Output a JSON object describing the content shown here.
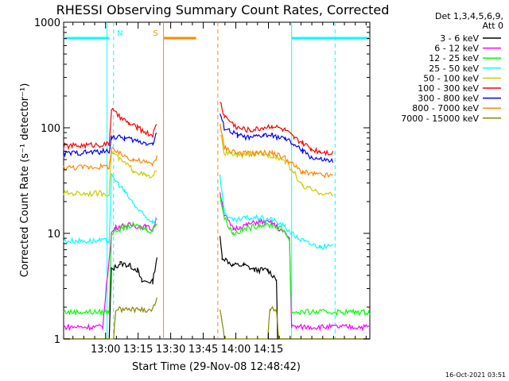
{
  "chart_data": {
    "type": "line",
    "title": "RHESSI Observing Summary Count Rates, Corrected",
    "xlabel": "Start Time (29-Nov-08 12:48:42)",
    "ylabel": "Corrected Count Rate (s⁻¹ detector⁻¹)",
    "y_scale": "log",
    "ylim": [
      1,
      1000
    ],
    "xlim": [
      -8,
      133
    ],
    "y_ticks": [
      1,
      10,
      100,
      1000
    ],
    "x_ticks": [
      {
        "label": "13:00",
        "min": 11.3
      },
      {
        "label": "13:15",
        "min": 26.3
      },
      {
        "label": "13:30",
        "min": 41.3
      },
      {
        "label": "13:45",
        "min": 56.3
      },
      {
        "label": "14:00",
        "min": 71.3
      },
      {
        "label": "14:15",
        "min": 86.3
      }
    ],
    "legend_header": [
      "Det 1,3,4,5,6,9,",
      "Att 0"
    ],
    "legend_position": "right",
    "grid": false,
    "series": [
      {
        "name": "3 - 6 keV",
        "color": "#000000",
        "data": [
          [
            -8,
            1
          ],
          [
            13,
            1
          ],
          [
            14,
            4.5
          ],
          [
            18,
            5.2
          ],
          [
            22,
            5
          ],
          [
            26,
            4.5
          ],
          [
            28,
            3.5
          ],
          [
            33,
            3.5
          ],
          [
            35,
            6
          ],
          [
            38,
            null
          ],
          [
            64,
            null
          ],
          [
            64,
            9
          ],
          [
            65,
            6
          ],
          [
            70,
            5
          ],
          [
            75,
            5
          ],
          [
            80,
            4.5
          ],
          [
            86,
            4.5
          ],
          [
            90,
            3.7
          ],
          [
            90.5,
            1
          ],
          [
            133,
            1
          ]
        ]
      },
      {
        "name": "6 - 12 keV",
        "color": "#ff00ff",
        "data": [
          [
            -8,
            1.3
          ],
          [
            10,
            1.3
          ],
          [
            14,
            10
          ],
          [
            16,
            11.5
          ],
          [
            22,
            12
          ],
          [
            30,
            11.5
          ],
          [
            33,
            11
          ],
          [
            35,
            14
          ],
          [
            38,
            null
          ],
          [
            64,
            null
          ],
          [
            64,
            25
          ],
          [
            66,
            15
          ],
          [
            70,
            11
          ],
          [
            76,
            12
          ],
          [
            82,
            13
          ],
          [
            88,
            12.5
          ],
          [
            94,
            10
          ],
          [
            96,
            9
          ],
          [
            97,
            1.3
          ],
          [
            133,
            1.3
          ]
        ]
      },
      {
        "name": "12 - 25 keV",
        "color": "#00ff00",
        "data": [
          [
            -8,
            1.8
          ],
          [
            13,
            1.8
          ],
          [
            14,
            10
          ],
          [
            18,
            11
          ],
          [
            24,
            12
          ],
          [
            30,
            11
          ],
          [
            33,
            10.5
          ],
          [
            35,
            13
          ],
          [
            38,
            null
          ],
          [
            64,
            null
          ],
          [
            64,
            23
          ],
          [
            66,
            14
          ],
          [
            70,
            10
          ],
          [
            76,
            11
          ],
          [
            82,
            12
          ],
          [
            88,
            12
          ],
          [
            94,
            10.5
          ],
          [
            96,
            8.5
          ],
          [
            97,
            1.8
          ],
          [
            133,
            1.8
          ]
        ]
      },
      {
        "name": "25 - 50 keV",
        "color": "#00ffff",
        "data": [
          [
            -8,
            8.5
          ],
          [
            13,
            8.5
          ],
          [
            14,
            35
          ],
          [
            17,
            30
          ],
          [
            20,
            25
          ],
          [
            25,
            18
          ],
          [
            30,
            14
          ],
          [
            33,
            13
          ],
          [
            35,
            14
          ],
          [
            38,
            null
          ],
          [
            64,
            null
          ],
          [
            64,
            35
          ],
          [
            66,
            16
          ],
          [
            70,
            13
          ],
          [
            76,
            14
          ],
          [
            82,
            14
          ],
          [
            88,
            13.5
          ],
          [
            94,
            11.5
          ],
          [
            97,
            10
          ],
          [
            100,
            9
          ],
          [
            105,
            8
          ],
          [
            110,
            7.5
          ],
          [
            116,
            7.5
          ]
        ]
      },
      {
        "name": "50 - 100 keV",
        "color": "#cccc00",
        "data": [
          [
            -8,
            24
          ],
          [
            13,
            24
          ],
          [
            14,
            60
          ],
          [
            18,
            50
          ],
          [
            24,
            40
          ],
          [
            30,
            35
          ],
          [
            33,
            34
          ],
          [
            35,
            40
          ],
          [
            38,
            null
          ],
          [
            64,
            null
          ],
          [
            64,
            90
          ],
          [
            66,
            58
          ],
          [
            72,
            55
          ],
          [
            78,
            57
          ],
          [
            84,
            56
          ],
          [
            90,
            54
          ],
          [
            94,
            48
          ],
          [
            98,
            38
          ],
          [
            102,
            28
          ],
          [
            108,
            25
          ],
          [
            116,
            23
          ]
        ]
      },
      {
        "name": "100 - 300 keV",
        "color": "#ff0000",
        "data": [
          [
            -8,
            67
          ],
          [
            13,
            70
          ],
          [
            14,
            150
          ],
          [
            17,
            130
          ],
          [
            22,
            110
          ],
          [
            26,
            100
          ],
          [
            30,
            90
          ],
          [
            33,
            85
          ],
          [
            35,
            110
          ],
          [
            38,
            null
          ],
          [
            64,
            null
          ],
          [
            64,
            180
          ],
          [
            66,
            130
          ],
          [
            72,
            100
          ],
          [
            78,
            95
          ],
          [
            84,
            100
          ],
          [
            88,
            105
          ],
          [
            94,
            95
          ],
          [
            98,
            80
          ],
          [
            102,
            72
          ],
          [
            106,
            63
          ],
          [
            110,
            60
          ],
          [
            116,
            58
          ]
        ]
      },
      {
        "name": "300 - 800 keV",
        "color": "#0000ff",
        "data": [
          [
            -8,
            57
          ],
          [
            13,
            60
          ],
          [
            14,
            82
          ],
          [
            20,
            80
          ],
          [
            26,
            75
          ],
          [
            30,
            72
          ],
          [
            33,
            70
          ],
          [
            35,
            90
          ],
          [
            38,
            null
          ],
          [
            64,
            null
          ],
          [
            64,
            135
          ],
          [
            66,
            100
          ],
          [
            72,
            85
          ],
          [
            78,
            80
          ],
          [
            84,
            85
          ],
          [
            88,
            85
          ],
          [
            94,
            78
          ],
          [
            98,
            70
          ],
          [
            102,
            60
          ],
          [
            106,
            53
          ],
          [
            110,
            50
          ],
          [
            116,
            48
          ]
        ]
      },
      {
        "name": "800 - 7000 keV",
        "color": "#ff8800",
        "data": [
          [
            -8,
            42
          ],
          [
            13,
            43
          ],
          [
            14,
            62
          ],
          [
            18,
            57
          ],
          [
            24,
            50
          ],
          [
            30,
            47
          ],
          [
            33,
            45
          ],
          [
            35,
            55
          ],
          [
            38,
            null
          ],
          [
            64,
            null
          ],
          [
            64,
            105
          ],
          [
            66,
            65
          ],
          [
            72,
            58
          ],
          [
            78,
            57
          ],
          [
            84,
            58
          ],
          [
            88,
            58
          ],
          [
            94,
            52
          ],
          [
            98,
            44
          ],
          [
            102,
            38
          ],
          [
            108,
            36
          ],
          [
            116,
            35
          ]
        ]
      },
      {
        "name": "7000 - 15000 keV",
        "color": "#888800",
        "data": [
          [
            -8,
            1
          ],
          [
            15,
            1
          ],
          [
            16,
            1.9
          ],
          [
            22,
            1.9
          ],
          [
            28,
            1.9
          ],
          [
            33,
            1.9
          ],
          [
            35,
            2.5
          ],
          [
            38,
            null
          ],
          [
            64,
            null
          ],
          [
            64,
            2
          ],
          [
            66,
            1
          ],
          [
            86,
            1
          ],
          [
            87,
            1.9
          ],
          [
            90,
            1.9
          ],
          [
            91,
            1
          ],
          [
            133,
            1
          ]
        ]
      }
    ],
    "markers": [
      {
        "label": "N",
        "color": "#00ffff",
        "solid_line_min": 12,
        "dashed_line_min": 15,
        "top_bar_from": -8,
        "top_bar_to": 13
      },
      {
        "label": "S",
        "color": "#ff8800",
        "solid_line_min": 38,
        "dashed_line_min": 63,
        "top_bar_from": 38,
        "top_bar_to": 53
      },
      {
        "label": "",
        "color": "#00ffff",
        "solid_line_min": 97,
        "dashed_line_min": 117,
        "top_bar_from": 97,
        "top_bar_to": 133
      }
    ],
    "footer_stamp": "16-Oct-2021 03:51"
  }
}
